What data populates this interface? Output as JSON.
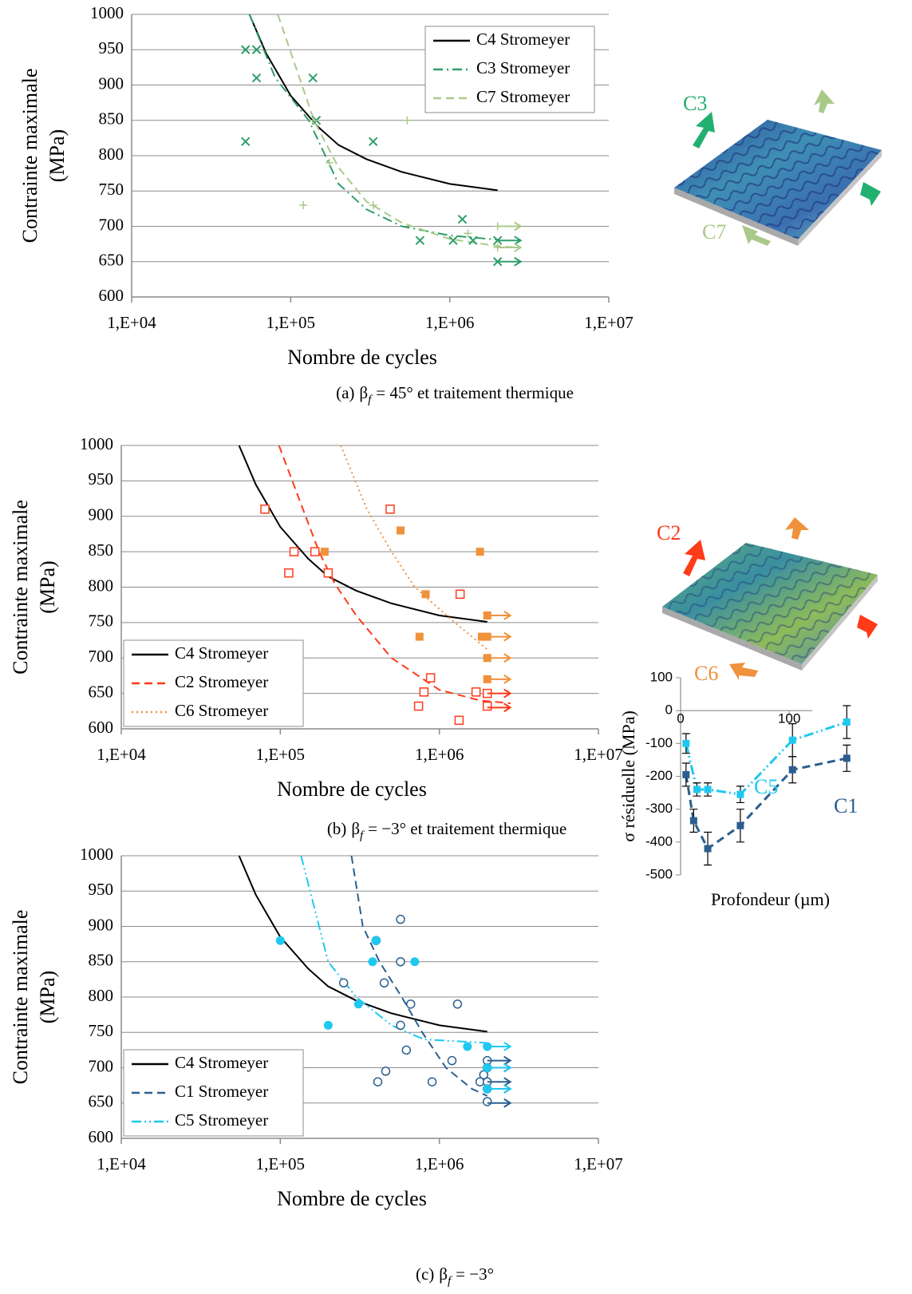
{
  "chart_data": [
    {
      "type": "line",
      "xscale": "log",
      "grid": true,
      "legend": "upper right",
      "ylabel": [
        "Contrainte maximale",
        "(MPa)"
      ],
      "xlabel": "Nombre de cycles",
      "xlim": [
        10000,
        10000000
      ],
      "xticks": [
        {
          "value": 10000,
          "label": "1,E+04"
        },
        {
          "value": 100000,
          "label": "1,E+05"
        },
        {
          "value": 1000000,
          "label": "1,E+06"
        },
        {
          "value": 10000000,
          "label": "1,E+07"
        }
      ],
      "ylim": [
        600,
        1000
      ],
      "yticks": [
        600,
        650,
        700,
        750,
        800,
        850,
        900,
        950,
        1000
      ],
      "series": [
        {
          "name": "C4 Stromeyer",
          "color": "#000000",
          "style": "solid",
          "x": [
            55000,
            70000,
            100000,
            150000,
            200000,
            300000,
            500000,
            1000000,
            2000000
          ],
          "values": [
            1000,
            945,
            885,
            840,
            815,
            795,
            777,
            760,
            751
          ]
        },
        {
          "name": "C3 Stromeyer",
          "color": "#2e9e6a",
          "style": "dashdot",
          "x": [
            55000,
            80000,
            130000,
            200000,
            300000,
            500000,
            1000000,
            2000000
          ],
          "values": [
            1000,
            910,
            850,
            760,
            724,
            700,
            687,
            681
          ]
        },
        {
          "name": "C7 Stromeyer",
          "color": "#a9c98a",
          "style": "dashed",
          "x": [
            83000,
            140000,
            200000,
            300000,
            500000,
            1000000,
            2000000,
            2700000
          ],
          "values": [
            1000,
            850,
            783,
            735,
            705,
            682,
            672,
            670
          ]
        }
      ],
      "points": [
        {
          "marker": "x",
          "color": "#2e9e6a",
          "x": [
            52000,
            61000,
            61000,
            52000,
            138000,
            145000,
            330000,
            650000,
            1050000,
            1200000,
            1400000,
            2000000,
            2000000
          ],
          "values": [
            950,
            950,
            910,
            820,
            910,
            850,
            820,
            680,
            680,
            710,
            680,
            680,
            650
          ]
        },
        {
          "marker": "+",
          "color": "#a9c98a",
          "x": [
            140000,
            175000,
            120000,
            330000,
            540000,
            1300000,
            2000000,
            2000000
          ],
          "values": [
            850,
            790,
            730,
            730,
            850,
            690,
            700,
            670
          ]
        }
      ],
      "runouts": [
        {
          "color": "#2e9e6a",
          "x": [
            2000000,
            2000000
          ],
          "values": [
            680,
            650
          ]
        },
        {
          "color": "#a9c98a",
          "x": [
            2000000,
            2000000
          ],
          "values": [
            700,
            670
          ]
        }
      ],
      "caption": {
        "label": "(a)",
        "symbol": "β",
        "subscript": "f",
        "rest": "= 45° et traitement thermique"
      },
      "image_labels": [
        "C3",
        "C7"
      ]
    },
    {
      "type": "line",
      "xscale": "log",
      "grid": true,
      "legend": "lower left",
      "ylabel": [
        "Contrainte maximale",
        "(MPa)"
      ],
      "xlabel": "Nombre de cycles",
      "xlim": [
        10000,
        10000000
      ],
      "xticks": [
        {
          "value": 10000,
          "label": "1,E+04"
        },
        {
          "value": 100000,
          "label": "1,E+05"
        },
        {
          "value": 1000000,
          "label": "1,E+06"
        },
        {
          "value": 10000000,
          "label": "1,E+07"
        }
      ],
      "ylim": [
        600,
        1000
      ],
      "yticks": [
        600,
        650,
        700,
        750,
        800,
        850,
        900,
        950,
        1000
      ],
      "series": [
        {
          "name": "C4 Stromeyer",
          "color": "#000000",
          "style": "solid",
          "x": [
            55000,
            70000,
            100000,
            150000,
            200000,
            300000,
            500000,
            1000000,
            2000000
          ],
          "values": [
            1000,
            945,
            885,
            840,
            815,
            795,
            777,
            760,
            751
          ]
        },
        {
          "name": "C2 Stromeyer",
          "color": "#ff3b1a",
          "style": "dashed",
          "x": [
            98000,
            175000,
            220000,
            300000,
            500000,
            1000000,
            1800000,
            2800000
          ],
          "values": [
            1000,
            850,
            805,
            760,
            700,
            655,
            640,
            636
          ]
        },
        {
          "name": "C6 Stromeyer",
          "color": "#f0913c",
          "style": "dotted",
          "x": [
            240000,
            350000,
            500000,
            700000,
            1250000,
            2000000
          ],
          "values": [
            1000,
            910,
            850,
            800,
            750,
            712
          ]
        }
      ],
      "points": [
        {
          "marker": "square-open",
          "color": "#ff3b1a",
          "x": [
            80000,
            113000,
            122000,
            165000,
            200000,
            490000,
            1350000,
            740000,
            800000,
            880000,
            1330000,
            1700000,
            2000000,
            2000000
          ],
          "values": [
            910,
            820,
            850,
            850,
            820,
            910,
            790,
            632,
            652,
            672,
            612,
            652,
            650,
            632
          ]
        },
        {
          "marker": "square",
          "color": "#f0913c",
          "x": [
            190000,
            570000,
            820000,
            750000,
            1800000,
            1850000,
            2000000,
            2000000,
            2000000,
            2000000
          ],
          "values": [
            850,
            880,
            790,
            730,
            850,
            730,
            760,
            730,
            700,
            670
          ]
        }
      ],
      "runouts": [
        {
          "color": "#ff3b1a",
          "x": [
            2000000,
            2000000
          ],
          "values": [
            650,
            630
          ]
        },
        {
          "color": "#f0913c",
          "x": [
            2000000,
            2000000,
            2000000,
            2000000
          ],
          "values": [
            760,
            730,
            700,
            670
          ]
        }
      ],
      "caption": {
        "label": "(b)",
        "symbol": "β",
        "subscript": "f",
        "rest": "= −3° et traitement thermique"
      },
      "image_labels": [
        "C2",
        "C6"
      ]
    },
    {
      "type": "line",
      "xscale": "log",
      "grid": true,
      "legend": "lower left",
      "ylabel": [
        "Contrainte maximale",
        "(MPa)"
      ],
      "xlabel": "Nombre de cycles",
      "xlim": [
        10000,
        10000000
      ],
      "xticks": [
        {
          "value": 10000,
          "label": "1,E+04"
        },
        {
          "value": 100000,
          "label": "1,E+05"
        },
        {
          "value": 1000000,
          "label": "1,E+06"
        },
        {
          "value": 10000000,
          "label": "1,E+07"
        }
      ],
      "ylim": [
        600,
        1000
      ],
      "yticks": [
        600,
        650,
        700,
        750,
        800,
        850,
        900,
        950,
        1000
      ],
      "series": [
        {
          "name": "C4 Stromeyer",
          "color": "#000000",
          "style": "solid",
          "x": [
            55000,
            70000,
            100000,
            150000,
            200000,
            300000,
            500000,
            1000000,
            2000000
          ],
          "values": [
            1000,
            945,
            885,
            840,
            815,
            795,
            777,
            760,
            751
          ]
        },
        {
          "name": "C1 Stromeyer",
          "color": "#2b5f8f",
          "style": "dashed",
          "x": [
            280000,
            330000,
            420000,
            580000,
            780000,
            1100000,
            1600000,
            2000000
          ],
          "values": [
            1000,
            900,
            850,
            800,
            750,
            700,
            670,
            660
          ]
        },
        {
          "name": "C5 Stromeyer",
          "color": "#1ec8f0",
          "style": "dashdotdot",
          "x": [
            135000,
            200000,
            300000,
            500000,
            800000,
            2000000
          ],
          "values": [
            1000,
            850,
            800,
            760,
            740,
            735
          ]
        }
      ],
      "points": [
        {
          "marker": "circle-open",
          "color": "#2b5f8f",
          "x": [
            250000,
            400000,
            450000,
            410000,
            460000,
            570000,
            570000,
            570000,
            620000,
            660000,
            900000,
            1200000,
            1300000,
            1800000,
            1900000,
            2000000,
            2000000,
            2000000,
            2000000,
            2000000
          ],
          "values": [
            820,
            880,
            820,
            680,
            695,
            910,
            850,
            760,
            725,
            790,
            680,
            710,
            790,
            680,
            690,
            710,
            700,
            680,
            670,
            652
          ]
        },
        {
          "marker": "circle",
          "color": "#1ec8f0",
          "x": [
            100000,
            200000,
            310000,
            380000,
            400000,
            700000,
            1500000,
            2000000,
            2000000,
            2000000
          ],
          "values": [
            880,
            760,
            790,
            850,
            880,
            850,
            730,
            730,
            700,
            670
          ]
        }
      ],
      "runouts": [
        {
          "color": "#2b5f8f",
          "x": [
            2000000,
            2000000,
            2000000,
            2000000,
            2000000
          ],
          "values": [
            710,
            700,
            680,
            670,
            650
          ]
        },
        {
          "color": "#1ec8f0",
          "x": [
            2000000,
            2000000,
            2000000
          ],
          "values": [
            730,
            700,
            670
          ]
        }
      ],
      "caption": {
        "label": "(c)",
        "symbol": "β",
        "subscript": "f",
        "rest": "= −3°"
      }
    },
    {
      "type": "errorline",
      "xscale": "linear",
      "ylabel": "σ résiduelle (MPa)",
      "xlabel": "Profondeur (µm)",
      "xlim": [
        0,
        180
      ],
      "xticks": [
        0,
        100
      ],
      "ylim": [
        -500,
        100
      ],
      "yticks": [
        100,
        0,
        -100,
        -200,
        -300,
        -400,
        -500
      ],
      "series": [
        {
          "name": "C1",
          "color": "#2b5f8f",
          "style": "dashed",
          "x": [
            5,
            12,
            25,
            55,
            103,
            153
          ],
          "values": [
            -195,
            -335,
            -420,
            -350,
            -180,
            -145
          ],
          "errors": [
            35,
            35,
            50,
            50,
            40,
            40
          ]
        },
        {
          "name": "C5",
          "color": "#1ec8f0",
          "style": "dashdotdot",
          "x": [
            5,
            15,
            25,
            55,
            103,
            153
          ],
          "values": [
            -100,
            -240,
            -240,
            -255,
            -90,
            -35
          ],
          "errors": [
            30,
            20,
            20,
            25,
            50,
            50
          ]
        }
      ]
    }
  ]
}
